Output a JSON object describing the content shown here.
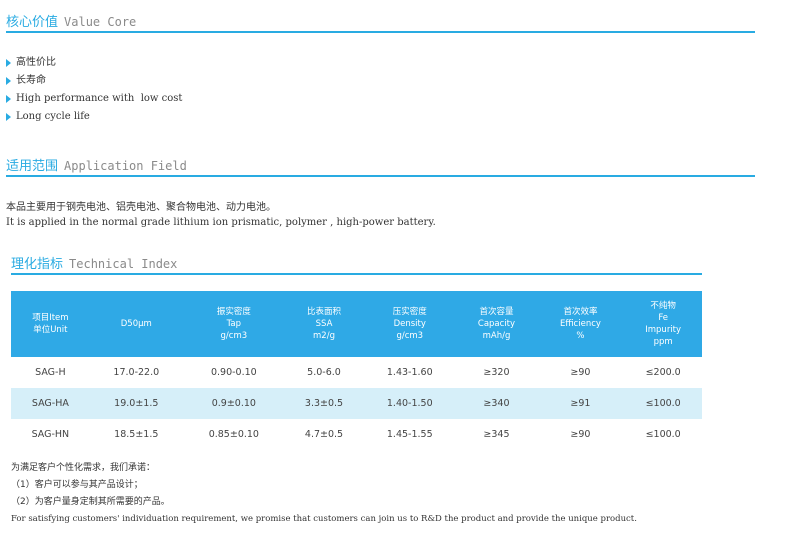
{
  "value_core": {
    "title_cn": "核心价值",
    "title_en": "Value Core",
    "items": [
      "高性价比",
      "长寿命",
      "High performance with  low cost",
      "Long cycle life"
    ]
  },
  "application": {
    "title_cn": "适用范围",
    "title_en": "Application Field",
    "text_cn": "本品主要用于钢壳电池、铝壳电池、聚合物电池、动力电池。",
    "text_en": "It is applied in the normal grade lithium ion prismatic, polymer , high-power battery."
  },
  "technical": {
    "title_cn": "理化指标",
    "title_en": "Technical Index",
    "headers": [
      [
        "项目Item",
        "单位Unit"
      ],
      [
        "D50μm"
      ],
      [
        "振实密度",
        "Tap",
        "g/cm3"
      ],
      [
        "比表面积",
        "SSA",
        "m2/g"
      ],
      [
        "压实密度",
        "Density",
        "g/cm3"
      ],
      [
        "首次容量",
        "Capacity",
        "mAh/g"
      ],
      [
        "首次效率",
        "Efficiency",
        "%"
      ],
      [
        "不纯物",
        "Fe",
        "Impurity",
        "ppm"
      ]
    ],
    "rows": [
      [
        "SAG-H",
        "17.0-22.0",
        "0.90-0.10",
        "5.0-6.0",
        "1.43-1.60",
        "≥320",
        "≥90",
        "≤200.0"
      ],
      [
        "SAG-HA",
        "19.0±1.5",
        "0.9±0.10",
        "3.3±0.5",
        "1.40-1.50",
        "≥340",
        "≥91",
        "≤100.0"
      ],
      [
        "SAG-HN",
        "18.5±1.5",
        "0.85±0.10",
        "4.7±0.5",
        "1.45-1.55",
        "≥345",
        "≥90",
        "≤100.0"
      ]
    ]
  },
  "footer": {
    "lines": [
      "为满足客户个性化需求，我们承诺：",
      "（1）客户可以参与其产品设计；",
      "（2）为客户量身定制其所需要的产品。",
      "For satisfying customers' individuation requirement, we promise that customers can join us to R&D the product and provide the unique product."
    ]
  }
}
